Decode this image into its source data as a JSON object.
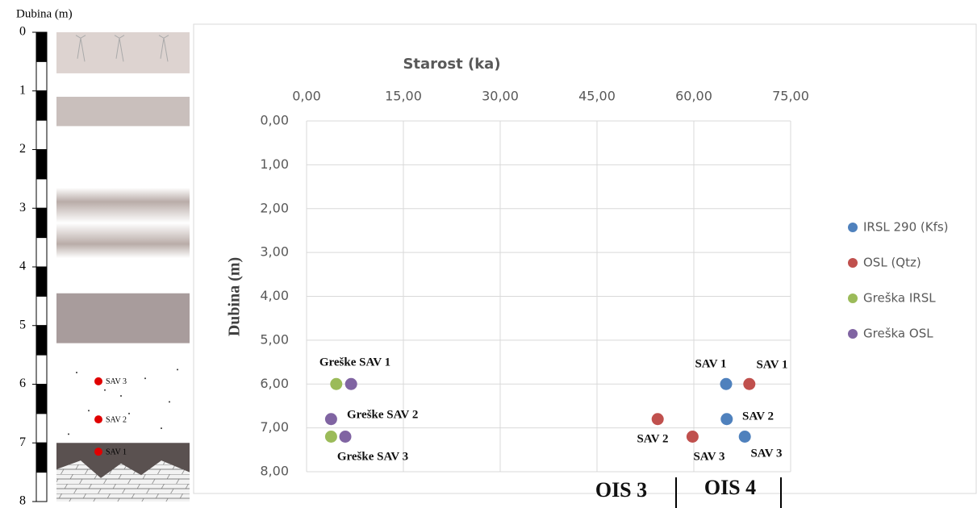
{
  "chart_data": {
    "type": "scatter",
    "xlabel": "Starost (ka)",
    "ylabel": "Dubina (m)",
    "xlim": [
      0,
      75
    ],
    "xticks": [
      {
        "value": 0,
        "label": "0,00"
      },
      {
        "value": 15,
        "label": "15,00"
      },
      {
        "value": 30,
        "label": "30,00"
      },
      {
        "value": 45,
        "label": "45,00"
      },
      {
        "value": 60,
        "label": "60,00"
      },
      {
        "value": 75,
        "label": "75,00"
      }
    ],
    "ylim": [
      0,
      8
    ],
    "yinverted": true,
    "yticks": [
      {
        "value": 0,
        "label": "0,00"
      },
      {
        "value": 1,
        "label": "1,00"
      },
      {
        "value": 2,
        "label": "2,00"
      },
      {
        "value": 3,
        "label": "3,00"
      },
      {
        "value": 4,
        "label": "4,00"
      },
      {
        "value": 5,
        "label": "5,00"
      },
      {
        "value": 6,
        "label": "6,00"
      },
      {
        "value": 7,
        "label": "7,00"
      },
      {
        "value": 8,
        "label": "8,00"
      }
    ],
    "grid": true,
    "legend": "right",
    "series": [
      {
        "name": "IRSL 290 (Kfs)",
        "color": "#4f81bd",
        "x": [
          65,
          65.1,
          67.9
        ],
        "values": [
          6,
          6.8,
          7.2
        ]
      },
      {
        "name": "OSL (Qtz)",
        "color": "#c0504d",
        "x": [
          68.6,
          54.4,
          59.8
        ],
        "values": [
          6,
          6.8,
          7.2
        ]
      },
      {
        "name": "Greška IRSL",
        "color": "#9bbb59",
        "x": [
          4.6,
          3.8
        ],
        "values": [
          6,
          7.2
        ]
      },
      {
        "name": "Greška OSL",
        "color": "#8064a2",
        "x": [
          6.9,
          3.8,
          6
        ],
        "values": [
          6,
          6.8,
          7.2
        ]
      }
    ],
    "annotations": [
      "Greške SAV 1",
      "Greške SAV 2",
      "Greške SAV 3",
      "SAV 1",
      "SAV 1",
      "SAV 2",
      "SAV 2",
      "SAV 3",
      "SAV 3",
      "OIS 3",
      "OIS 4"
    ]
  },
  "profile": {
    "title": "Dubina (m)",
    "ticks": [
      0,
      1,
      2,
      3,
      4,
      5,
      6,
      7,
      8
    ],
    "samples": [
      {
        "label": "SAV 3",
        "depth": 5.95
      },
      {
        "label": "SAV 2",
        "depth": 6.6
      },
      {
        "label": "SAV 1",
        "depth": 7.15
      }
    ]
  }
}
